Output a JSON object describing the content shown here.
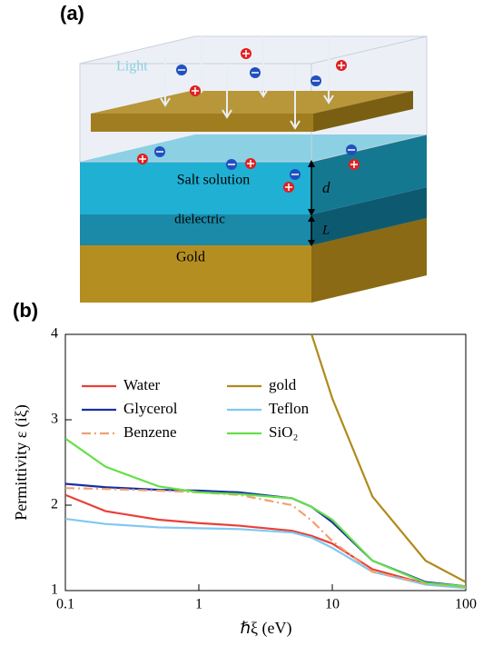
{
  "panel_a": {
    "label": "(a)",
    "light": "Light",
    "salt": "Salt solution",
    "d": "d",
    "dielectric": "dielectric",
    "L": "L",
    "gold": "Gold"
  },
  "chart_data": {
    "type": "line",
    "panel_label": "(b)",
    "x_label": "ℏξ (eV)",
    "y_label": "Permittivity ε (iξ)",
    "x": [
      0.1,
      0.2,
      0.5,
      1,
      2,
      5,
      7,
      10,
      20,
      50,
      100
    ],
    "xlim": [
      0.1,
      100
    ],
    "xticks": [
      0.1,
      1,
      10,
      100
    ],
    "xscale": "log",
    "ylim": [
      1,
      4
    ],
    "yticks": [
      1,
      2,
      3,
      4
    ],
    "legend": "upper left",
    "series": [
      {
        "name": "Water",
        "color": "#e8403a",
        "values": [
          2.12,
          1.93,
          1.83,
          1.79,
          1.76,
          1.7,
          1.64,
          1.55,
          1.25,
          1.08,
          1.04
        ]
      },
      {
        "name": "gold",
        "color": "#b08a1a",
        "values": [
          null,
          null,
          null,
          null,
          null,
          null,
          4.0,
          3.25,
          2.1,
          1.35,
          1.1
        ]
      },
      {
        "name": "Glycerol",
        "color": "#1a2fa0",
        "values": [
          2.25,
          2.21,
          2.18,
          2.17,
          2.15,
          2.08,
          1.98,
          1.8,
          1.35,
          1.1,
          1.05
        ]
      },
      {
        "name": "Teflon",
        "color": "#80c8f0",
        "values": [
          1.84,
          1.78,
          1.74,
          1.73,
          1.72,
          1.68,
          1.62,
          1.5,
          1.22,
          1.07,
          1.03
        ]
      },
      {
        "name": "Benzene",
        "color": "#f0a070",
        "linestyle": "dashdot",
        "values": [
          2.2,
          2.19,
          2.17,
          2.15,
          2.12,
          2.0,
          1.82,
          1.58,
          1.22,
          1.08,
          1.04
        ]
      },
      {
        "name": "SiO₂",
        "color": "#66e04a",
        "values": [
          2.78,
          2.45,
          2.22,
          2.15,
          2.13,
          2.08,
          1.98,
          1.83,
          1.35,
          1.09,
          1.05
        ]
      }
    ]
  }
}
